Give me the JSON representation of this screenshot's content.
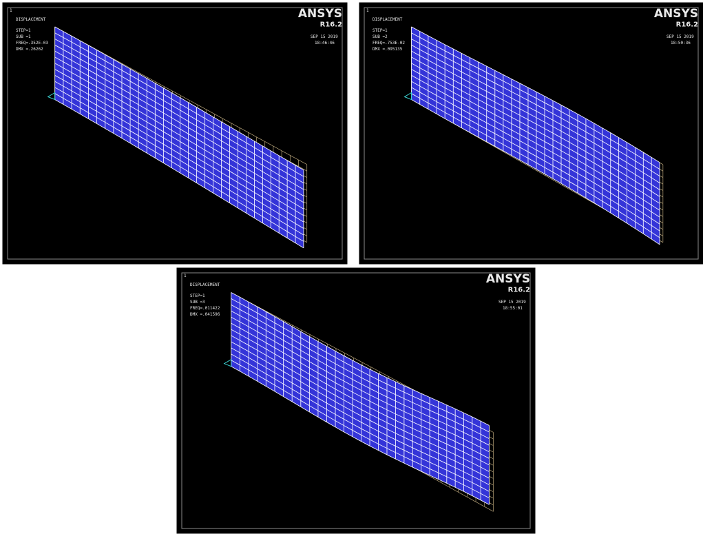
{
  "panels": [
    {
      "corner": "1",
      "title": "DISPLACEMENT",
      "step": "STEP=1",
      "sub": "SUB =1",
      "freq": "FREQ=.352E-03",
      "dmx": "DMX =.26262",
      "brand": "ANSYS",
      "version": "R16.2",
      "date": "SEP 15 2019",
      "time": "18:46:46"
    },
    {
      "corner": "1",
      "title": "DISPLACEMENT",
      "step": "STEP=1",
      "sub": "SUB =2",
      "freq": "FREQ=.753E-02",
      "dmx": "DMX =.095135",
      "brand": "ANSYS",
      "version": "R16.2",
      "date": "SEP 15 2019",
      "time": "18:50:36"
    },
    {
      "corner": "1",
      "title": "DISPLACEMENT",
      "step": "STEP=1",
      "sub": "SUB =3",
      "freq": "FREQ=.011422",
      "dmx": "DMX =.041596",
      "brand": "ANSYS",
      "version": "R16.2",
      "date": "SEP 15 2019",
      "time": "18:55:01"
    }
  ]
}
